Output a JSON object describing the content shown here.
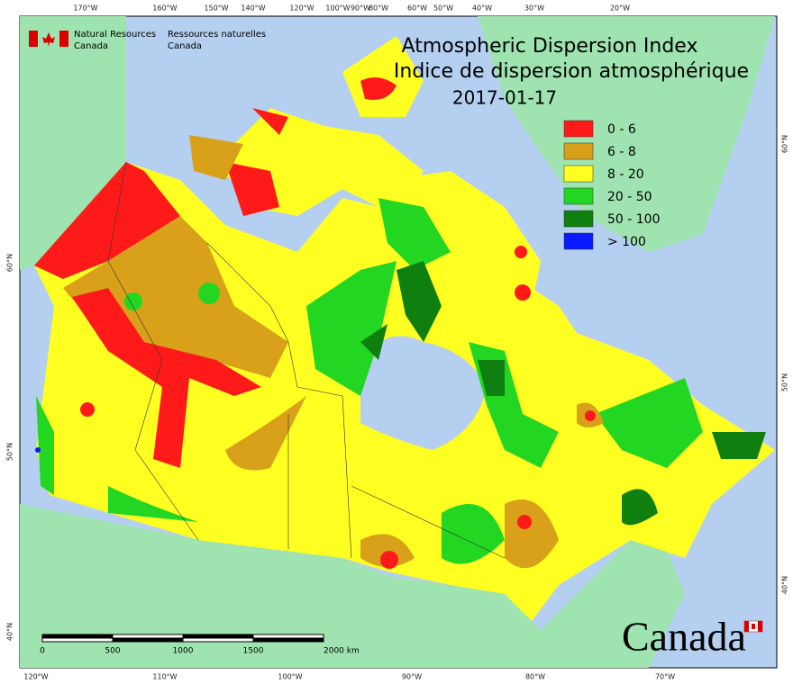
{
  "header": {
    "title_en": "Atmospheric Dispersion Index",
    "title_fr": "Indice de dispersion atmosphérique",
    "date": "2017-01-17"
  },
  "agency": {
    "en": [
      "Natural Resources",
      "Canada"
    ],
    "fr": [
      "Ressources naturelles",
      "Canada"
    ]
  },
  "legend": [
    {
      "label": "0 - 6",
      "color": "#ff1a1a"
    },
    {
      "label": "6 - 8",
      "color": "#d9a01a"
    },
    {
      "label": "8 - 20",
      "color": "#ffff22"
    },
    {
      "label": "20 - 50",
      "color": "#22d622"
    },
    {
      "label": "50 - 100",
      "color": "#0f7f0f"
    },
    {
      "label": "> 100",
      "color": "#0a1aff"
    }
  ],
  "graticule": {
    "top": [
      "170°W",
      "160°W",
      "150°W",
      "140°W",
      "120°W",
      "100°W",
      "90°W",
      "80°W",
      "60°W",
      "50°W",
      "40°W",
      "30°W",
      "20°W"
    ],
    "bottom": [
      "120°W",
      "110°W",
      "100°W",
      "90°W",
      "80°W",
      "70°W"
    ],
    "left": [
      "60°N",
      "50°N",
      "40°N"
    ],
    "right": [
      "60°N",
      "50°N",
      "40°N"
    ]
  },
  "scale_bar": [
    "0",
    "500",
    "1000",
    "1500",
    "2000  km"
  ],
  "wordmark": "Canada"
}
